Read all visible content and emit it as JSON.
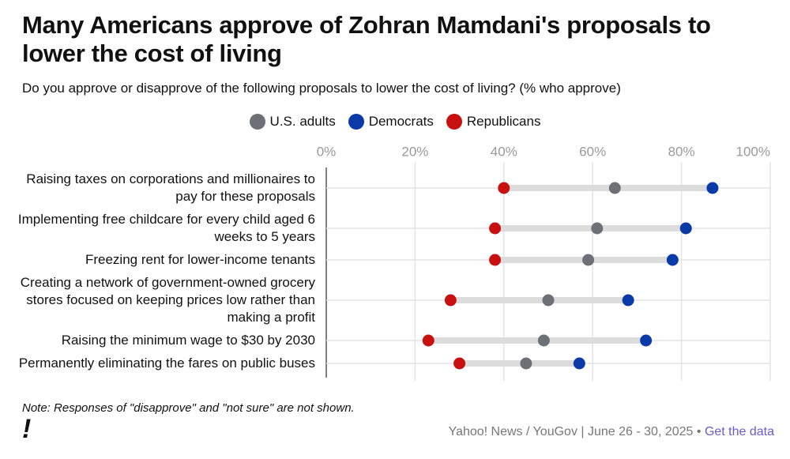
{
  "chart_data": {
    "type": "dot",
    "title": "Many Americans approve of Zohran Mamdani's proposals to lower the cost of living",
    "subtitle": "Do you approve or disapprove of the following proposals to lower the cost of living? (% who approve)",
    "categories": [
      "Raising taxes on corporations and millionaires to pay for these proposals",
      "Implementing free childcare for every child aged 6 weeks to 5 years",
      "Freezing rent for lower-income tenants",
      "Creating a network of government-owned grocery stores focused on keeping prices low rather than making a profit",
      "Raising the minimum wage to $30 by 2030",
      "Permanently eliminating the fares on public buses"
    ],
    "series": [
      {
        "name": "U.S. adults",
        "color": "#6e7077",
        "values": [
          65,
          61,
          59,
          50,
          49,
          45
        ]
      },
      {
        "name": "Democrats",
        "color": "#0a3aa8",
        "values": [
          87,
          81,
          78,
          68,
          72,
          57
        ]
      },
      {
        "name": "Republicans",
        "color": "#c8100f",
        "values": [
          40,
          38,
          38,
          28,
          23,
          30
        ]
      }
    ],
    "xlim": [
      0,
      100
    ],
    "xticks": [
      {
        "value": 0,
        "label": "0%"
      },
      {
        "value": 20,
        "label": "20%"
      },
      {
        "value": 40,
        "label": "40%"
      },
      {
        "value": 60,
        "label": "60%"
      },
      {
        "value": 80,
        "label": "80%"
      },
      {
        "value": 100,
        "label": "100%"
      }
    ],
    "grid": true,
    "note": "Note: Responses of \"disapprove\" and \"not sure\" are not shown.",
    "source": "Yahoo! News / YouGov | June 26 - 30, 2025 •",
    "link": "Get the data",
    "logo": "!"
  }
}
